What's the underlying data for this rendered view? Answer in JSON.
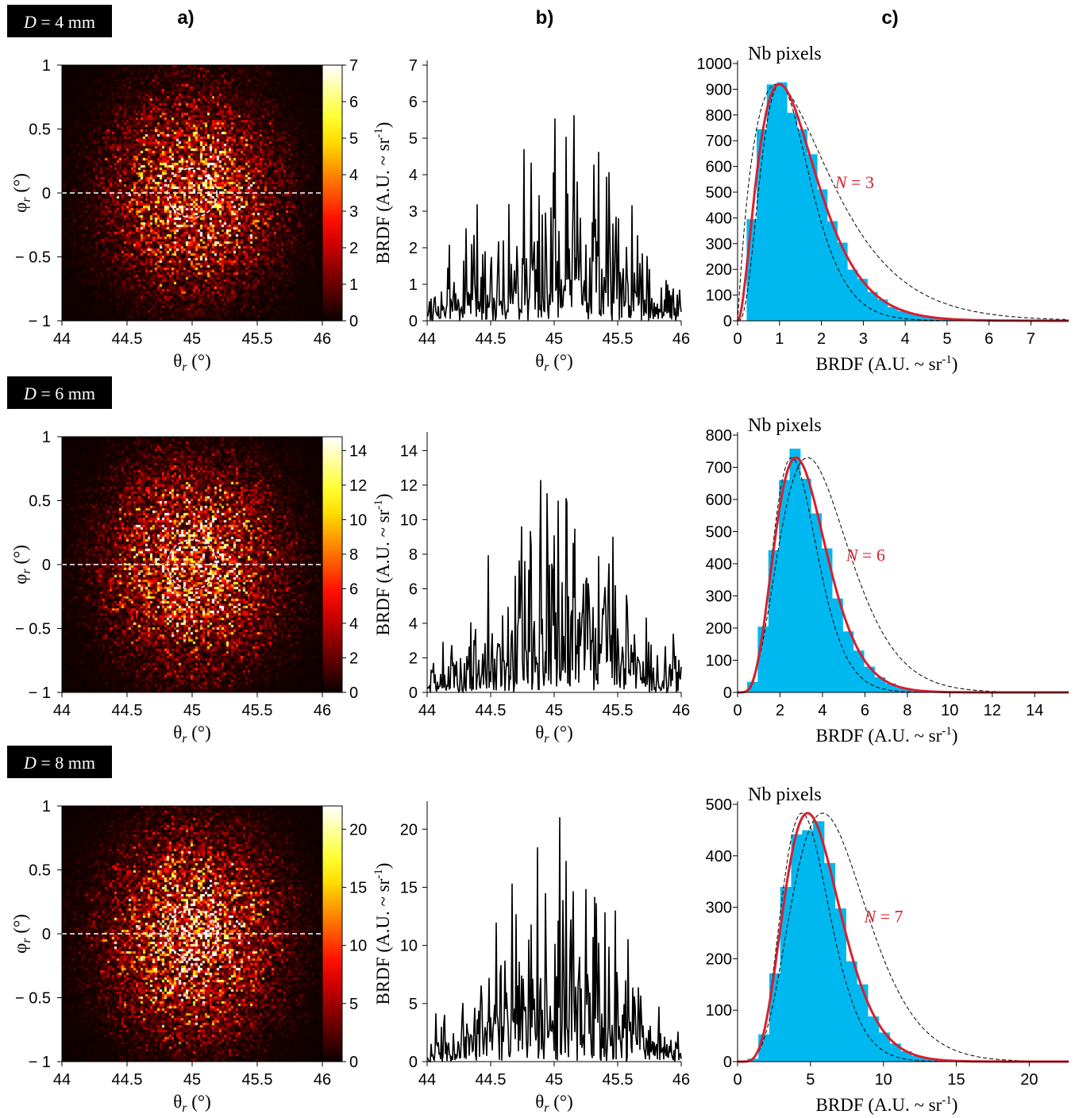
{
  "panel_letters": [
    "a)",
    "b)",
    "c)"
  ],
  "rows": [
    {
      "tag": {
        "var": "D",
        "rest": " = 4 mm"
      },
      "heatmap": {
        "xlim": [
          44,
          46
        ],
        "ylim": [
          -1,
          1
        ],
        "xticks": [
          "44",
          "44.5",
          "45",
          "45.5",
          "46"
        ],
        "yticks": [
          "1",
          "0.5",
          "0",
          "− 0.5",
          "− 1"
        ],
        "xlabel": {
          "sym": "θ",
          "sub": "r",
          "rest": " (°)"
        },
        "ylabel": {
          "sym": "φ",
          "sub": "r",
          "rest": " (°)"
        },
        "colorbar": {
          "min": 0,
          "max": 7,
          "ticks": [
            "0",
            "1",
            "2",
            "3",
            "4",
            "5",
            "6",
            "7"
          ]
        },
        "spot_scale": 0.85,
        "circle": {
          "center": [
            45,
            0
          ],
          "radius_deg": 0.19
        },
        "cut_line_phi": 0
      },
      "profile": {
        "xlim": [
          44,
          46
        ],
        "ylim": [
          0,
          7
        ],
        "xticks": [
          "44",
          "44.5",
          "45",
          "45.5",
          "46"
        ],
        "yticks": [
          "0",
          "1",
          "2",
          "3",
          "4",
          "5",
          "6",
          "7"
        ],
        "ylabel": "BRDF (A.U. ~ sr",
        "ylabel_sup": "-1",
        "xlabel": {
          "sym": "θ",
          "sub": "r",
          "rest": " (°)"
        },
        "mean_peak": 1.3,
        "mean_edge": 0.3,
        "noise": 1.2,
        "spikes": [
          [
            44.35,
            2.1
          ],
          [
            44.6,
            2.2
          ],
          [
            44.76,
            4.7
          ],
          [
            45.0,
            2.8
          ],
          [
            45.3,
            2.7
          ]
        ]
      },
      "histogram": {
        "title": "Nb pixels",
        "xlim": [
          0,
          7.9
        ],
        "ylim": [
          0,
          1000
        ],
        "xticks": [
          "0",
          "1",
          "2",
          "3",
          "4",
          "5",
          "6",
          "7"
        ],
        "yticks": [
          "0",
          "100",
          "200",
          "300",
          "400",
          "500",
          "600",
          "700",
          "800",
          "900",
          "1000"
        ],
        "xlabel": "BRDF (A.U. ~ sr",
        "xlabel_sup": "-1",
        "bin_width": 0.24,
        "mean": 1.5,
        "N": 3,
        "peak_count": 920,
        "N_label": {
          "var": "N",
          "rest": " = 3"
        },
        "fit_color": "#d6202f",
        "bar_color": "#00b8f0"
      }
    },
    {
      "tag": {
        "var": "D",
        "rest": " = 6 mm"
      },
      "heatmap": {
        "xlim": [
          44,
          46
        ],
        "ylim": [
          -1,
          1
        ],
        "xticks": [
          "44",
          "44.5",
          "45",
          "45.5",
          "46"
        ],
        "yticks": [
          "1",
          "0.5",
          "0",
          "− 0.5",
          "− 1"
        ],
        "xlabel": {
          "sym": "θ",
          "sub": "r",
          "rest": " (°)"
        },
        "ylabel": {
          "sym": "φ",
          "sub": "r",
          "rest": " (°)"
        },
        "colorbar": {
          "min": 0,
          "max": 14.8,
          "ticks": [
            "0",
            "2",
            "4",
            "6",
            "8",
            "10",
            "12",
            "14"
          ]
        },
        "spot_scale": 0.95,
        "circle": {
          "center": [
            45,
            0
          ],
          "radius_deg": 0.19
        },
        "cut_line_phi": 0
      },
      "profile": {
        "xlim": [
          44,
          46
        ],
        "ylim": [
          0,
          14.8
        ],
        "xticks": [
          "44",
          "44.5",
          "45",
          "45.5",
          "46"
        ],
        "yticks": [
          "0",
          "2",
          "4",
          "6",
          "8",
          "10",
          "12",
          "14"
        ],
        "ylabel": "BRDF (A.U. ~ sr",
        "ylabel_sup": "-1",
        "xlabel": {
          "sym": "θ",
          "sub": "r",
          "rest": " (°)"
        },
        "mean_peak": 3.4,
        "mean_edge": 0.6,
        "noise": 1.1,
        "spikes": [
          [
            44.8,
            7.1
          ],
          [
            44.95,
            7.9
          ],
          [
            45.23,
            6.3
          ],
          [
            45.4,
            6.1
          ]
        ]
      },
      "histogram": {
        "title": "Nb pixels",
        "xlim": [
          0,
          15.6
        ],
        "ylim": [
          0,
          800
        ],
        "xticks": [
          "0",
          "2",
          "4",
          "6",
          "8",
          "10",
          "12",
          "14"
        ],
        "yticks": [
          "0",
          "100",
          "200",
          "300",
          "400",
          "500",
          "600",
          "700",
          "800"
        ],
        "xlabel": "BRDF (A.U. ~ sr",
        "xlabel_sup": "-1",
        "bin_width": 0.5,
        "mean": 3.3,
        "N": 6,
        "peak_count": 730,
        "N_label": {
          "var": "N",
          "rest": " = 6"
        },
        "fit_color": "#d6202f",
        "bar_color": "#00b8f0"
      }
    },
    {
      "tag": {
        "var": "D",
        "rest": " = 8 mm"
      },
      "heatmap": {
        "xlim": [
          44,
          46
        ],
        "ylim": [
          -1,
          1
        ],
        "xticks": [
          "44",
          "44.5",
          "45",
          "45.5",
          "46"
        ],
        "yticks": [
          "1",
          "0.5",
          "0",
          "− 0.5",
          "− 1"
        ],
        "xlabel": {
          "sym": "θ",
          "sub": "r",
          "rest": " (°)"
        },
        "ylabel": {
          "sym": "φ",
          "sub": "r",
          "rest": " (°)"
        },
        "colorbar": {
          "min": 0,
          "max": 22,
          "ticks": [
            "0",
            "5",
            "10",
            "15",
            "20"
          ]
        },
        "spot_scale": 1.0,
        "circle": {
          "center": [
            45,
            0
          ],
          "radius_deg": 0.19
        },
        "cut_line_phi": 0
      },
      "profile": {
        "xlim": [
          44,
          46
        ],
        "ylim": [
          0,
          22
        ],
        "xticks": [
          "44",
          "44.5",
          "45",
          "45.5",
          "46"
        ],
        "yticks": [
          "0",
          "5",
          "10",
          "15",
          "20"
        ],
        "ylabel": "BRDF (A.U. ~ sr",
        "ylabel_sup": "-1",
        "xlabel": {
          "sym": "θ",
          "sub": "r",
          "rest": " (°)"
        },
        "mean_peak": 6.8,
        "mean_edge": 0.6,
        "noise": 0.9,
        "spikes": [
          [
            44.93,
            14.5
          ],
          [
            45.07,
            13.9
          ],
          [
            44.8,
            10.5
          ]
        ]
      },
      "histogram": {
        "title": "Nb pixels",
        "xlim": [
          0,
          22.7
        ],
        "ylim": [
          0,
          500
        ],
        "xticks": [
          "0",
          "5",
          "10",
          "15",
          "20"
        ],
        "yticks": [
          "0",
          "100",
          "200",
          "300",
          "400",
          "500"
        ],
        "xlabel": "BRDF (A.U. ~ sr",
        "xlabel_sup": "-1",
        "bin_width": 0.75,
        "mean": 5.6,
        "N": 7,
        "peak_count": 483,
        "N_label": {
          "var": "N",
          "rest": " = 7"
        },
        "fit_color": "#d6202f",
        "bar_color": "#00b8f0"
      }
    }
  ]
}
